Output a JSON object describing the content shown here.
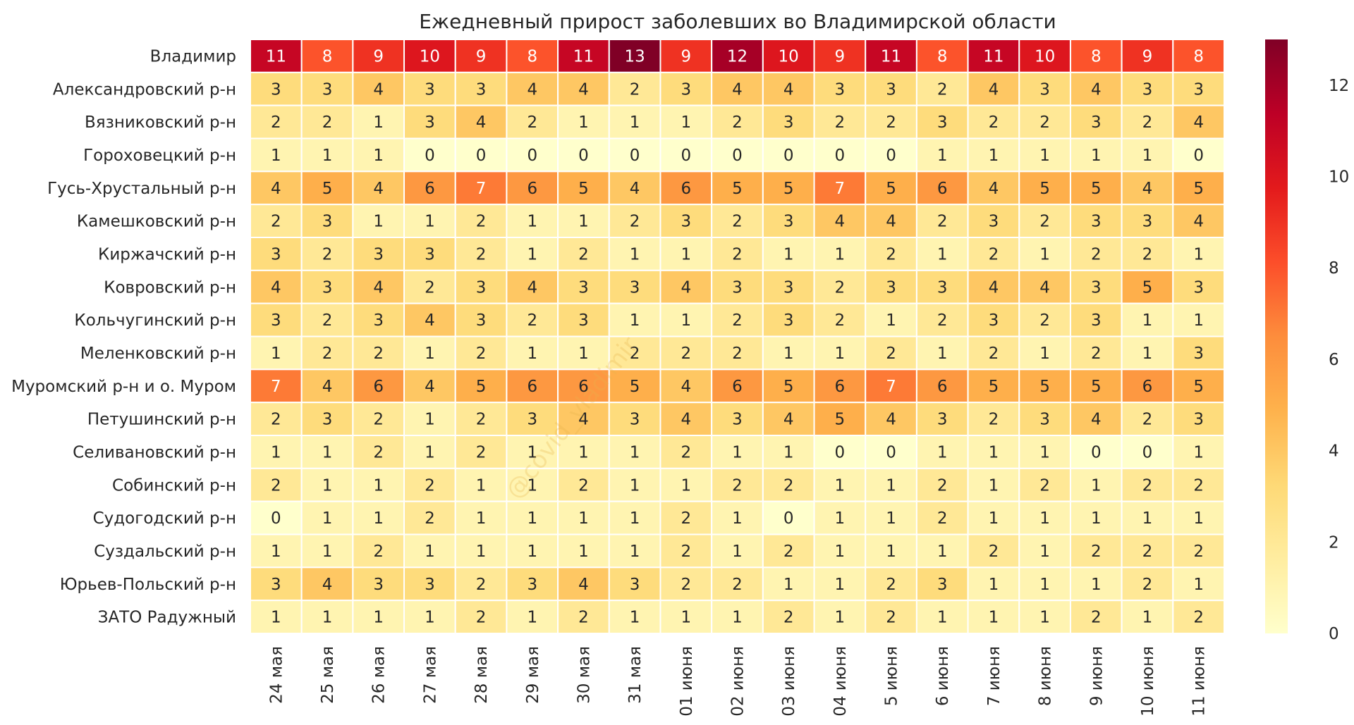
{
  "chart_data": {
    "type": "heatmap",
    "title": "Ежедневный прирост заболевших во Владимирской области",
    "xlabel": "",
    "ylabel": "",
    "columns": [
      "24 мая",
      "25 мая",
      "26 мая",
      "27 мая",
      "28 мая",
      "29 мая",
      "30 мая",
      "31 мая",
      "01 июня",
      "02 июня",
      "03 июня",
      "04 июня",
      "5 июня",
      "6 июня",
      "7 июня",
      "8 июня",
      "9 июня",
      "10 июня",
      "11 июня"
    ],
    "rows": [
      "Владимир",
      "Александровский р-н",
      "Вязниковский р-н",
      "Гороховецкий р-н",
      "Гусь-Хрустальный р-н",
      "Камешковский р-н",
      "Киржачский р-н",
      "Ковровский р-н",
      "Кольчугинский р-н",
      "Меленковский р-н",
      "Муромский р-н и о. Муром",
      "Петушинский р-н",
      "Селивановский р-н",
      "Собинский р-н",
      "Судогодский р-н",
      "Суздальский р-н",
      "Юрьев-Польский р-н",
      "ЗАТО Радужный"
    ],
    "values": [
      [
        11,
        8,
        9,
        10,
        9,
        8,
        11,
        13,
        9,
        12,
        10,
        9,
        11,
        8,
        11,
        10,
        8,
        9,
        8
      ],
      [
        3,
        3,
        4,
        3,
        3,
        4,
        4,
        2,
        3,
        4,
        4,
        3,
        3,
        2,
        4,
        3,
        4,
        3,
        3
      ],
      [
        2,
        2,
        1,
        3,
        4,
        2,
        1,
        1,
        1,
        2,
        3,
        2,
        2,
        3,
        2,
        2,
        3,
        2,
        4
      ],
      [
        1,
        1,
        1,
        0,
        0,
        0,
        0,
        0,
        0,
        0,
        0,
        0,
        0,
        1,
        1,
        1,
        1,
        1,
        0
      ],
      [
        4,
        5,
        4,
        6,
        7,
        6,
        5,
        4,
        6,
        5,
        5,
        7,
        5,
        6,
        4,
        5,
        5,
        4,
        5
      ],
      [
        2,
        3,
        1,
        1,
        2,
        1,
        1,
        2,
        3,
        2,
        3,
        4,
        4,
        2,
        3,
        2,
        3,
        3,
        4
      ],
      [
        3,
        2,
        3,
        3,
        2,
        1,
        2,
        1,
        1,
        2,
        1,
        1,
        2,
        1,
        2,
        1,
        2,
        2,
        1
      ],
      [
        4,
        3,
        4,
        2,
        3,
        4,
        3,
        3,
        4,
        3,
        3,
        2,
        3,
        3,
        4,
        4,
        3,
        5,
        3
      ],
      [
        3,
        2,
        3,
        4,
        3,
        2,
        3,
        1,
        1,
        2,
        3,
        2,
        1,
        2,
        3,
        2,
        3,
        1,
        1
      ],
      [
        1,
        2,
        2,
        1,
        2,
        1,
        1,
        2,
        2,
        2,
        1,
        1,
        2,
        1,
        2,
        1,
        2,
        1,
        3
      ],
      [
        7,
        4,
        6,
        4,
        5,
        6,
        6,
        5,
        4,
        6,
        5,
        6,
        7,
        6,
        5,
        5,
        5,
        6,
        5
      ],
      [
        2,
        3,
        2,
        1,
        2,
        3,
        4,
        3,
        4,
        3,
        4,
        5,
        4,
        3,
        2,
        3,
        4,
        2,
        3
      ],
      [
        1,
        1,
        2,
        1,
        2,
        1,
        1,
        1,
        2,
        1,
        1,
        0,
        0,
        1,
        1,
        1,
        0,
        0,
        1
      ],
      [
        2,
        1,
        1,
        2,
        1,
        1,
        2,
        1,
        1,
        2,
        2,
        1,
        1,
        2,
        1,
        2,
        1,
        2,
        2
      ],
      [
        0,
        1,
        1,
        2,
        1,
        1,
        1,
        1,
        2,
        1,
        0,
        1,
        1,
        2,
        1,
        1,
        1,
        1,
        1
      ],
      [
        1,
        1,
        2,
        1,
        1,
        1,
        1,
        1,
        2,
        1,
        2,
        1,
        1,
        1,
        2,
        1,
        2,
        2,
        2
      ],
      [
        3,
        4,
        3,
        3,
        2,
        3,
        4,
        3,
        2,
        2,
        1,
        1,
        2,
        3,
        1,
        1,
        1,
        2,
        1
      ],
      [
        1,
        1,
        1,
        1,
        2,
        1,
        2,
        1,
        1,
        1,
        2,
        1,
        2,
        1,
        1,
        1,
        2,
        1,
        2
      ]
    ],
    "vmin": 0,
    "vmax": 13,
    "colormap": "YlOrRd",
    "colorbar_ticks": [
      0,
      2,
      4,
      6,
      8,
      10,
      12
    ],
    "annotate": true,
    "watermark": "@covid_vladimir"
  }
}
